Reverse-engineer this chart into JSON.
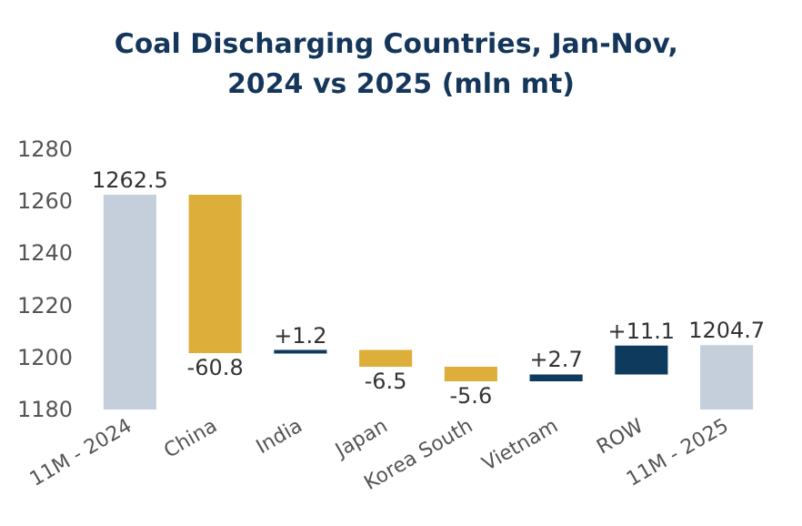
{
  "chart_data": {
    "type": "bar",
    "title": "Coal Discharging Countries, Jan-Nov, 2024 vs 2025 (mln mt)",
    "categories": [
      "11M - 2024",
      "China",
      "India",
      "Japan",
      "Korea South",
      "Vietnam",
      "ROW",
      "11M - 2025"
    ],
    "values": [
      1262.5,
      -60.8,
      1.2,
      -6.5,
      -5.6,
      2.7,
      11.1,
      1204.7
    ],
    "base": [
      0,
      1262.5,
      1201.7,
      1202.9,
      1196.4,
      1190.8,
      1193.5,
      0
    ],
    "colors": [
      "#c5cfdb",
      "#deae3a",
      "#0e3a5e",
      "#deae3a",
      "#deae3a",
      "#0e3a5e",
      "#0e3a5e",
      "#c5cfdb"
    ],
    "value_labels": [
      "1262.5",
      "-60.8",
      "+1.2",
      "-6.5",
      "-5.6",
      "+2.7",
      "+11.1",
      "1204.7"
    ],
    "ylim": [
      1180,
      1280
    ],
    "yticks": [
      1180,
      1200,
      1220,
      1240,
      1260,
      1280
    ],
    "grid": false
  }
}
